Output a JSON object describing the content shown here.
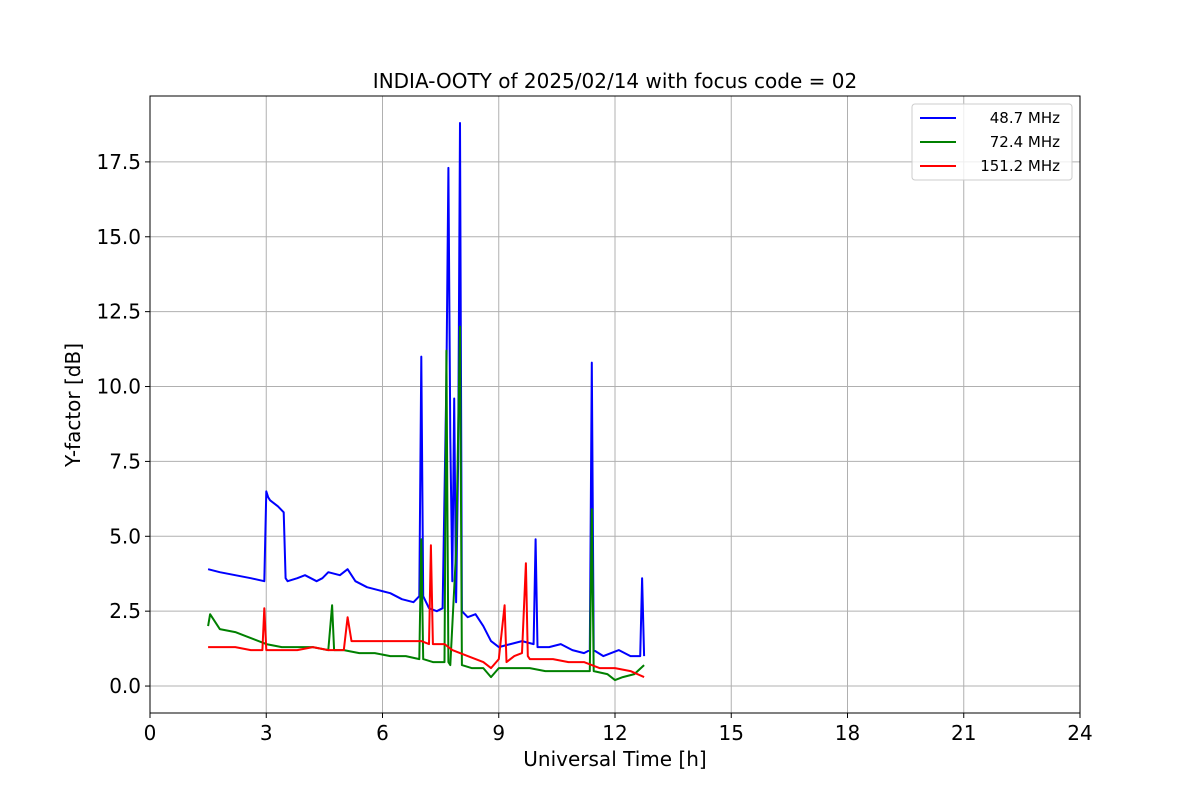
{
  "chart_data": {
    "type": "line",
    "title": "INDIA-OOTY of 2025/02/14 with focus code = 02",
    "xlabel": "Universal Time [h]",
    "ylabel": "Y-factor [dB]",
    "xlim": [
      0,
      24
    ],
    "ylim": [
      -0.9,
      19.7
    ],
    "xticks": [
      0,
      3,
      6,
      9,
      12,
      15,
      18,
      21,
      24
    ],
    "xtick_labels": [
      "0",
      "3",
      "6",
      "9",
      "12",
      "15",
      "18",
      "21",
      "24"
    ],
    "yticks": [
      0.0,
      2.5,
      5.0,
      7.5,
      10.0,
      12.5,
      15.0,
      17.5
    ],
    "ytick_labels": [
      "0.0",
      "2.5",
      "5.0",
      "7.5",
      "10.0",
      "12.5",
      "15.0",
      "17.5"
    ],
    "grid": true,
    "legend_position": "top-right",
    "series": [
      {
        "name": "48.7 MHz",
        "color": "#0000ff",
        "x": [
          1.5,
          1.8,
          2.2,
          2.6,
          2.95,
          3.0,
          3.05,
          3.1,
          3.3,
          3.45,
          3.5,
          3.55,
          3.8,
          4.0,
          4.3,
          4.45,
          4.6,
          4.9,
          5.1,
          5.3,
          5.6,
          5.9,
          6.2,
          6.5,
          6.8,
          6.95,
          7.0,
          7.05,
          7.2,
          7.4,
          7.55,
          7.65,
          7.7,
          7.75,
          7.8,
          7.85,
          7.9,
          7.95,
          8.0,
          8.05,
          8.2,
          8.4,
          8.6,
          8.8,
          9.0,
          9.3,
          9.6,
          9.9,
          9.95,
          10.0,
          10.3,
          10.6,
          10.9,
          11.2,
          11.35,
          11.4,
          11.45,
          11.7,
          11.9,
          12.1,
          12.4,
          12.65,
          12.7,
          12.75
        ],
        "y": [
          3.9,
          3.8,
          3.7,
          3.6,
          3.5,
          6.5,
          6.3,
          6.2,
          6.0,
          5.8,
          3.6,
          3.5,
          3.6,
          3.7,
          3.5,
          3.6,
          3.8,
          3.7,
          3.9,
          3.5,
          3.3,
          3.2,
          3.1,
          2.9,
          2.8,
          3.0,
          11.0,
          3.0,
          2.6,
          2.5,
          2.6,
          10.2,
          17.3,
          8.3,
          3.5,
          9.6,
          2.8,
          7.4,
          18.8,
          2.5,
          2.3,
          2.4,
          2.0,
          1.5,
          1.3,
          1.4,
          1.5,
          1.4,
          4.9,
          1.3,
          1.3,
          1.4,
          1.2,
          1.1,
          1.2,
          10.8,
          1.2,
          1.0,
          1.1,
          1.2,
          1.0,
          1.0,
          3.6,
          1.0
        ]
      },
      {
        "name": "72.4 MHz",
        "color": "#008000",
        "x": [
          1.5,
          1.55,
          1.8,
          2.2,
          2.6,
          3.0,
          3.4,
          3.8,
          4.2,
          4.6,
          4.7,
          4.75,
          5.0,
          5.4,
          5.8,
          6.2,
          6.6,
          6.95,
          7.0,
          7.05,
          7.3,
          7.6,
          7.65,
          7.7,
          7.75,
          7.9,
          8.0,
          8.05,
          8.3,
          8.6,
          8.8,
          9.0,
          9.4,
          9.8,
          10.2,
          10.6,
          11.0,
          11.35,
          11.4,
          11.45,
          11.8,
          12.0,
          12.2,
          12.5,
          12.75
        ],
        "y": [
          2.0,
          2.4,
          1.9,
          1.8,
          1.6,
          1.4,
          1.3,
          1.3,
          1.3,
          1.2,
          2.7,
          1.2,
          1.2,
          1.1,
          1.1,
          1.0,
          1.0,
          0.9,
          4.9,
          0.9,
          0.8,
          0.8,
          11.2,
          0.8,
          0.7,
          4.5,
          12.0,
          0.7,
          0.6,
          0.6,
          0.3,
          0.6,
          0.6,
          0.6,
          0.5,
          0.5,
          0.5,
          0.5,
          5.9,
          0.5,
          0.4,
          0.2,
          0.3,
          0.4,
          0.7
        ]
      },
      {
        "name": "151.2 MHz",
        "color": "#ff0000",
        "x": [
          1.5,
          1.8,
          2.2,
          2.6,
          2.9,
          2.95,
          3.0,
          3.4,
          3.8,
          4.2,
          4.6,
          5.0,
          5.1,
          5.2,
          5.6,
          6.0,
          6.4,
          6.8,
          7.0,
          7.2,
          7.25,
          7.3,
          7.6,
          7.8,
          8.0,
          8.2,
          8.6,
          8.8,
          9.0,
          9.15,
          9.2,
          9.4,
          9.6,
          9.7,
          9.75,
          9.8,
          10.0,
          10.4,
          10.8,
          11.2,
          11.6,
          12.0,
          12.4,
          12.75
        ],
        "y": [
          1.3,
          1.3,
          1.3,
          1.2,
          1.2,
          2.6,
          1.2,
          1.2,
          1.2,
          1.3,
          1.2,
          1.2,
          2.3,
          1.5,
          1.5,
          1.5,
          1.5,
          1.5,
          1.5,
          1.4,
          4.7,
          1.4,
          1.4,
          1.2,
          1.1,
          1.0,
          0.8,
          0.6,
          0.9,
          2.7,
          0.8,
          1.0,
          1.1,
          4.1,
          1.0,
          0.9,
          0.9,
          0.9,
          0.8,
          0.8,
          0.6,
          0.6,
          0.5,
          0.3
        ]
      }
    ]
  }
}
